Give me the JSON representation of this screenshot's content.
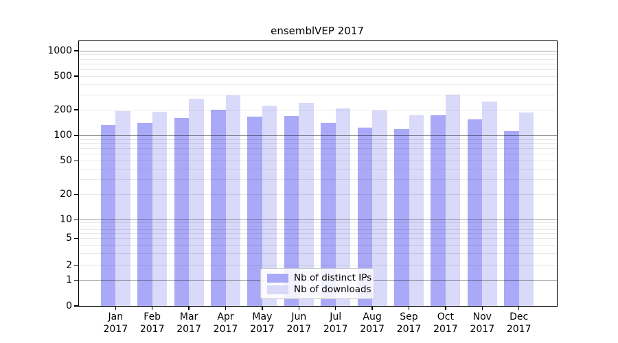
{
  "chart_data": {
    "type": "bar",
    "title": "ensemblVEP 2017",
    "categories": [
      "Jan",
      "Feb",
      "Mar",
      "Apr",
      "May",
      "Jun",
      "Jul",
      "Aug",
      "Sep",
      "Oct",
      "Nov",
      "Dec"
    ],
    "category_year": "2017",
    "series": [
      {
        "name": "Nb of distinct IPs",
        "color": "#a9a9f8",
        "values": [
          132,
          141,
          160,
          198,
          166,
          168,
          140,
          123,
          118,
          171,
          154,
          111
        ]
      },
      {
        "name": "Nb of downloads",
        "color": "#d9d9fa",
        "values": [
          192,
          188,
          270,
          295,
          222,
          240,
          206,
          196,
          173,
          300,
          251,
          186
        ]
      }
    ],
    "xlabel": "",
    "ylabel": "",
    "yscale": "symlog",
    "ytick_labels": [
      0,
      1,
      2,
      5,
      10,
      20,
      50,
      100,
      200,
      500,
      1000
    ],
    "ylim": [
      0,
      1290
    ],
    "grid": "horizontal major+minor, drawn over bars",
    "legend_position": "lower center"
  },
  "colors": {
    "grid_minor": "rgba(0,0,0,0.09)",
    "grid_major": "rgba(0,0,0,0.40)",
    "axis": "#000000",
    "legend_border": "#cccccc",
    "legend_background": "rgba(255,255,255,0.85)"
  }
}
